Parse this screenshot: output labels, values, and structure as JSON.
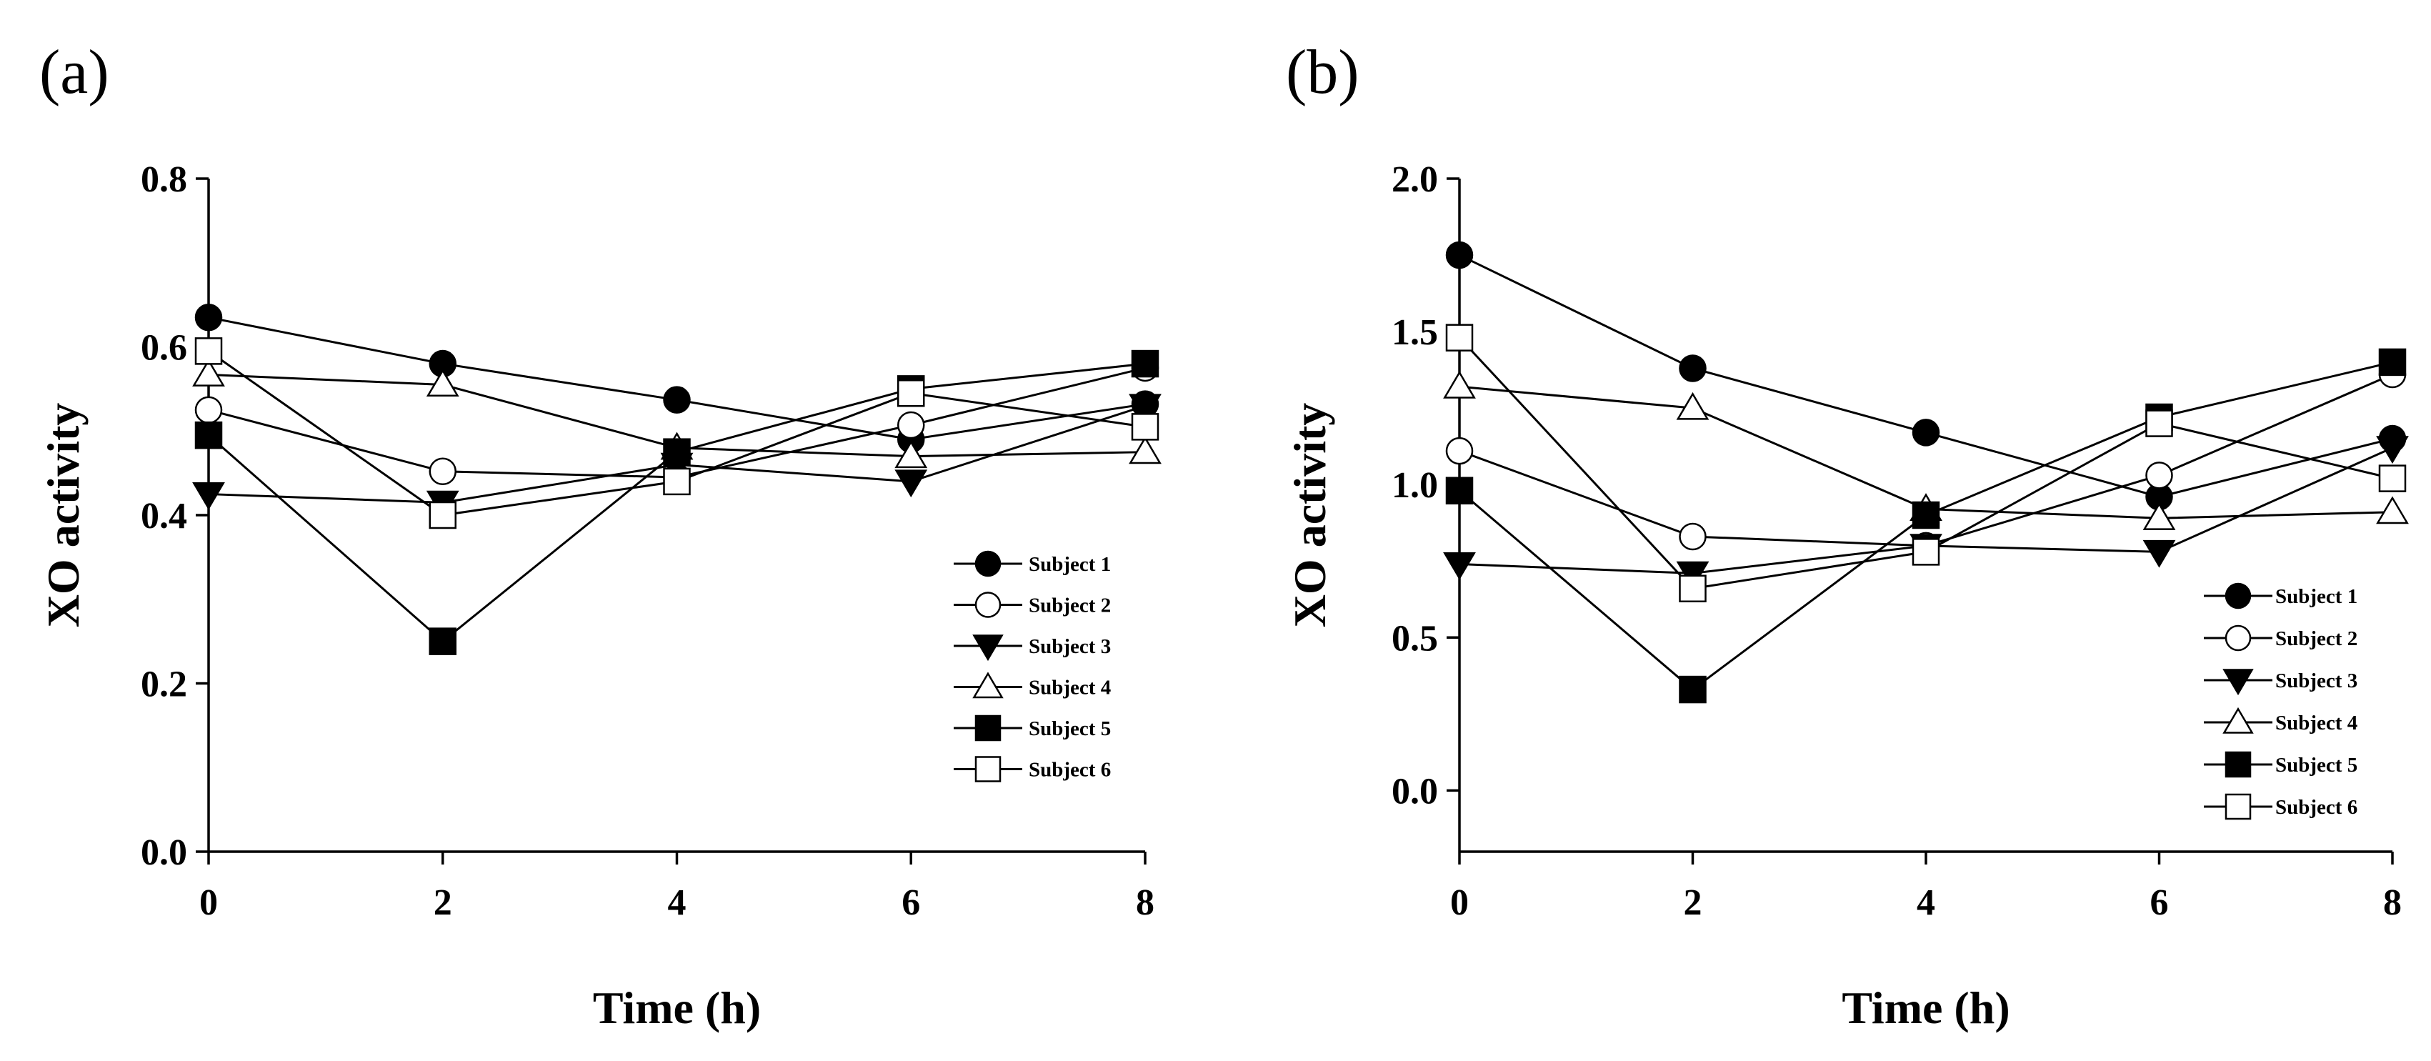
{
  "chart_data": [
    {
      "type": "line",
      "panel_label": "(a)",
      "xlabel": "Time (h)",
      "ylabel": "XO activity",
      "x": [
        0,
        2,
        4,
        6,
        8
      ],
      "xticks": [
        "0",
        "2",
        "4",
        "6",
        "8"
      ],
      "yticks": [
        "0.0",
        "0.2",
        "0.4",
        "0.6",
        "0.8"
      ],
      "xlim": [
        0,
        8
      ],
      "ylim": [
        0,
        0.8
      ],
      "legend_position": "bottom-right",
      "series": [
        {
          "name": "Subject 1",
          "marker": "circle-filled",
          "values": [
            0.635,
            0.58,
            0.537,
            0.49,
            0.532
          ]
        },
        {
          "name": "Subject 2",
          "marker": "circle-open",
          "values": [
            0.525,
            0.452,
            0.445,
            0.507,
            0.575
          ]
        },
        {
          "name": "Subject 3",
          "marker": "triangle-down-filled",
          "values": [
            0.425,
            0.415,
            0.46,
            0.44,
            0.53
          ]
        },
        {
          "name": "Subject 4",
          "marker": "triangle-up-open",
          "values": [
            0.567,
            0.555,
            0.48,
            0.47,
            0.475
          ]
        },
        {
          "name": "Subject 5",
          "marker": "square-filled",
          "values": [
            0.495,
            0.25,
            0.475,
            0.55,
            0.58
          ]
        },
        {
          "name": "Subject 6",
          "marker": "square-open",
          "values": [
            0.595,
            0.4,
            0.44,
            0.545,
            0.505
          ]
        }
      ]
    },
    {
      "type": "line",
      "panel_label": "(b)",
      "xlabel": "Time (h)",
      "ylabel": "XO activity",
      "x": [
        0,
        2,
        4,
        6,
        8
      ],
      "xticks": [
        "0",
        "2",
        "4",
        "6",
        "8"
      ],
      "yticks": [
        "0.0",
        "0.5",
        "1.0",
        "1.5",
        "2.0"
      ],
      "xlim": [
        0,
        8
      ],
      "ylim": [
        -0.2,
        2.0
      ],
      "legend_position": "bottom-right",
      "series": [
        {
          "name": "Subject 1",
          "marker": "circle-filled",
          "values": [
            1.75,
            1.38,
            1.17,
            0.96,
            1.15
          ]
        },
        {
          "name": "Subject 2",
          "marker": "circle-open",
          "values": [
            1.11,
            0.83,
            0.8,
            1.03,
            1.36
          ]
        },
        {
          "name": "Subject 3",
          "marker": "triangle-down-filled",
          "values": [
            0.74,
            0.71,
            0.8,
            0.78,
            1.12
          ]
        },
        {
          "name": "Subject 4",
          "marker": "triangle-up-open",
          "values": [
            1.32,
            1.25,
            0.92,
            0.89,
            0.91
          ]
        },
        {
          "name": "Subject 5",
          "marker": "square-filled",
          "values": [
            0.98,
            0.33,
            0.9,
            1.22,
            1.4
          ]
        },
        {
          "name": "Subject 6",
          "marker": "square-open",
          "values": [
            1.48,
            0.66,
            0.78,
            1.2,
            1.02
          ]
        }
      ]
    }
  ]
}
